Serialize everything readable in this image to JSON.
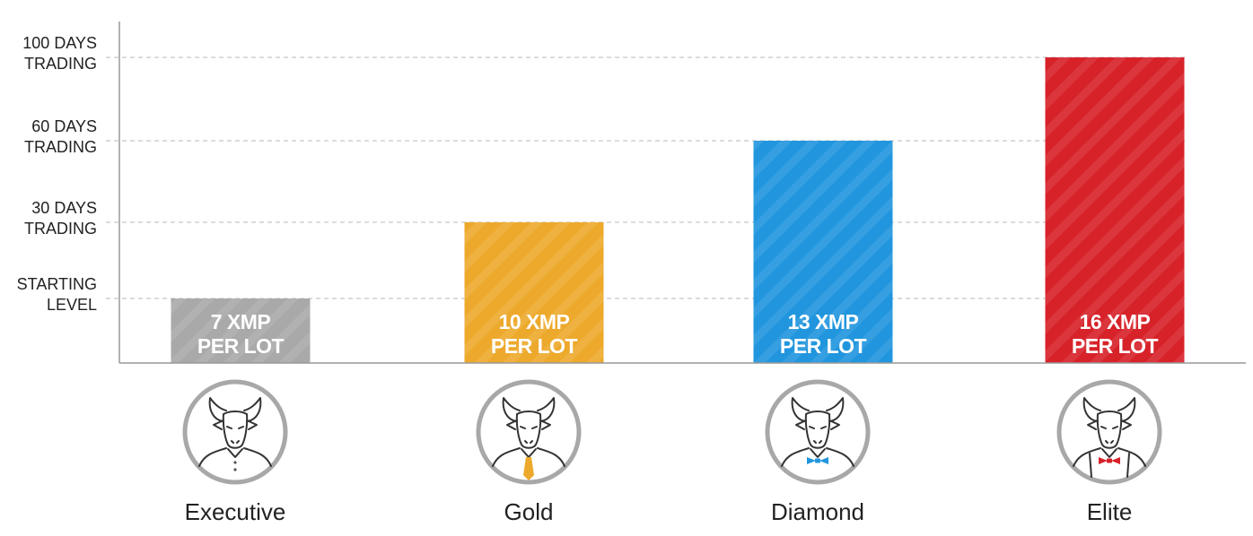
{
  "chart_data": {
    "type": "bar",
    "categories": [
      "Executive",
      "Gold",
      "Diamond",
      "Elite"
    ],
    "values": [
      0,
      30,
      60,
      100
    ],
    "bar_labels": [
      [
        "7 XMP",
        "PER LOT"
      ],
      [
        "10 XMP",
        "PER LOT"
      ],
      [
        "13 XMP",
        "PER LOT"
      ],
      [
        "16 XMP",
        "PER LOT"
      ]
    ],
    "y_levels": [
      {
        "value": 0,
        "lines": [
          "STARTING",
          "LEVEL"
        ]
      },
      {
        "value": 30,
        "lines": [
          "30 DAYS",
          "TRADING"
        ]
      },
      {
        "value": 60,
        "lines": [
          "60 DAYS",
          "TRADING"
        ]
      },
      {
        "value": 100,
        "lines": [
          "100 DAYS",
          "TRADING"
        ]
      }
    ],
    "colors": [
      "#a9a9a9",
      "#eda92c",
      "#2196de",
      "#d7222a"
    ],
    "icon_accent_colors": [
      "#9a9a9a",
      "#eda92c",
      "#2196de",
      "#d7222a"
    ],
    "icons": [
      "bull-executive-icon",
      "bull-gold-icon",
      "bull-diamond-icon",
      "bull-elite-icon"
    ],
    "grid": true,
    "legend": "none"
  }
}
